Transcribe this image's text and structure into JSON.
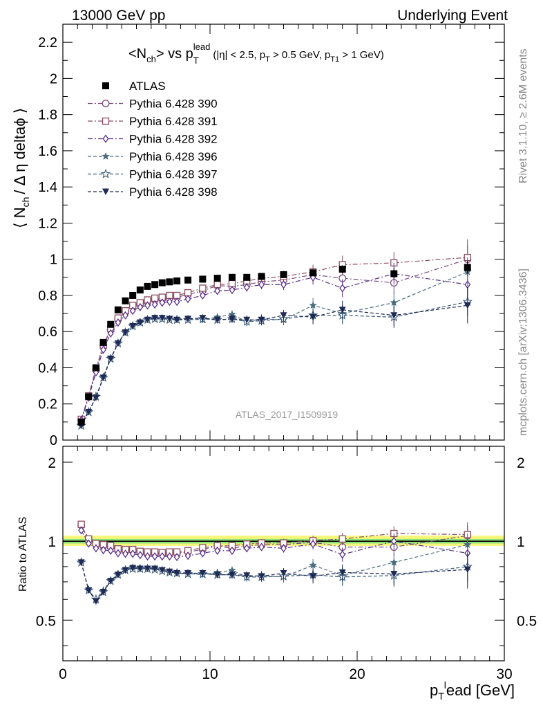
{
  "header": {
    "left": "13000 GeV pp",
    "right": "Underlying Event"
  },
  "side_labels": {
    "rivet": "Rivet 3.1.10, ≥ 2.6M events",
    "mcplots": "mcplots.cern.ch [arXiv:1306.3436]"
  },
  "watermark": "ATLAS_2017_I1509919",
  "title": {
    "main": "<N",
    "main_sub": "ch",
    "vs": "> vs p",
    "vs_sub": "T",
    "vs_sup": "lead",
    "cuts": "(|η| < 2.5, p",
    "cuts_sub1": "T",
    "cuts_mid": " > 0.5 GeV, p",
    "cuts_sub2": "T1",
    "cuts_end": " > 1 GeV)"
  },
  "ylabel_top": {
    "a": "⟨ N",
    "sub": "ch",
    "b": "/ Δ η deltaϕ ⟩"
  },
  "ylabel_bottom": "Ratio to ATLAS",
  "xlabel": {
    "p": "p",
    "sub": "T",
    "sup": "l",
    "rest": "ead [GeV]"
  },
  "chart_data": [
    {
      "type": "scatter",
      "panel": "main",
      "xlim": [
        0,
        30
      ],
      "ylim": [
        0,
        2.3
      ],
      "x_ticks": [
        0,
        10,
        20,
        30
      ],
      "y_ticks": [
        0,
        0.2,
        0.4,
        0.6,
        0.8,
        1,
        1.2,
        1.4,
        1.6,
        1.8,
        2,
        2.2
      ],
      "y_tick_labels": [
        "0",
        "0.2",
        "0.4",
        "0.6",
        "0.8",
        "1",
        "1.2",
        "1.4",
        "1.6",
        "1.8",
        "2",
        "2.2"
      ],
      "legend_placement": "top-left",
      "x": [
        1.25,
        1.75,
        2.25,
        2.75,
        3.25,
        3.75,
        4.25,
        4.75,
        5.25,
        5.75,
        6.25,
        6.75,
        7.25,
        7.75,
        8.5,
        9.5,
        10.5,
        11.5,
        12.5,
        13.5,
        15,
        17,
        19,
        22.5,
        27.5
      ],
      "series": [
        {
          "name": "ATLAS",
          "color": "#000000",
          "marker": "filled-square",
          "line": "none",
          "values": [
            0.1,
            0.24,
            0.4,
            0.54,
            0.64,
            0.72,
            0.77,
            0.8,
            0.83,
            0.85,
            0.86,
            0.87,
            0.875,
            0.88,
            0.885,
            0.89,
            0.895,
            0.9,
            0.9,
            0.905,
            0.915,
            0.925,
            0.945,
            0.92,
            0.955
          ],
          "errors": [
            0.005,
            0.005,
            0.005,
            0.005,
            0.005,
            0.005,
            0.005,
            0.005,
            0.005,
            0.005,
            0.005,
            0.005,
            0.006,
            0.006,
            0.007,
            0.008,
            0.009,
            0.01,
            0.01,
            0.012,
            0.014,
            0.018,
            0.022,
            0.028,
            0.035
          ]
        },
        {
          "name": "Pythia 6.428 390",
          "color": "#7a4a7e",
          "marker": "open-circle",
          "line": "dash-dot",
          "values": [
            0.11,
            0.24,
            0.39,
            0.52,
            0.61,
            0.67,
            0.71,
            0.74,
            0.755,
            0.765,
            0.775,
            0.78,
            0.785,
            0.79,
            0.805,
            0.825,
            0.855,
            0.85,
            0.86,
            0.875,
            0.885,
            0.915,
            0.895,
            0.87,
            1.0
          ],
          "errors": [
            0.005,
            0.005,
            0.006,
            0.007,
            0.008,
            0.009,
            0.01,
            0.01,
            0.01,
            0.012,
            0.012,
            0.013,
            0.014,
            0.015,
            0.016,
            0.018,
            0.02,
            0.022,
            0.024,
            0.026,
            0.03,
            0.04,
            0.05,
            0.06,
            0.08
          ]
        },
        {
          "name": "Pythia 6.428 391",
          "color": "#8b4a5e",
          "marker": "open-square",
          "line": "dash-dot",
          "values": [
            0.115,
            0.245,
            0.395,
            0.525,
            0.615,
            0.675,
            0.715,
            0.745,
            0.76,
            0.775,
            0.785,
            0.79,
            0.8,
            0.8,
            0.815,
            0.84,
            0.86,
            0.865,
            0.88,
            0.895,
            0.905,
            0.93,
            0.97,
            0.98,
            1.01
          ],
          "errors": [
            0.005,
            0.005,
            0.006,
            0.007,
            0.008,
            0.009,
            0.01,
            0.01,
            0.01,
            0.012,
            0.012,
            0.013,
            0.014,
            0.015,
            0.016,
            0.018,
            0.02,
            0.022,
            0.024,
            0.026,
            0.03,
            0.04,
            0.05,
            0.06,
            0.1
          ]
        },
        {
          "name": "Pythia 6.428 392",
          "color": "#5a2f8a",
          "marker": "open-diamond",
          "line": "dash-dot",
          "values": [
            0.11,
            0.235,
            0.375,
            0.5,
            0.59,
            0.65,
            0.69,
            0.715,
            0.735,
            0.745,
            0.75,
            0.76,
            0.765,
            0.765,
            0.78,
            0.8,
            0.825,
            0.83,
            0.845,
            0.86,
            0.86,
            0.9,
            0.84,
            0.92,
            0.86
          ],
          "errors": [
            0.005,
            0.005,
            0.006,
            0.007,
            0.008,
            0.009,
            0.01,
            0.01,
            0.01,
            0.012,
            0.012,
            0.013,
            0.014,
            0.015,
            0.016,
            0.018,
            0.02,
            0.022,
            0.024,
            0.026,
            0.03,
            0.04,
            0.05,
            0.06,
            0.08
          ]
        },
        {
          "name": "Pythia 6.428 396",
          "color": "#4a6e80",
          "marker": "filled-star",
          "line": "dashed",
          "values": [
            0.085,
            0.155,
            0.24,
            0.35,
            0.455,
            0.535,
            0.6,
            0.635,
            0.655,
            0.665,
            0.675,
            0.67,
            0.67,
            0.665,
            0.67,
            0.665,
            0.68,
            0.695,
            0.655,
            0.67,
            0.665,
            0.745,
            0.7,
            0.76,
            0.93
          ],
          "errors": [
            0.005,
            0.005,
            0.006,
            0.007,
            0.008,
            0.009,
            0.01,
            0.01,
            0.01,
            0.012,
            0.012,
            0.013,
            0.014,
            0.015,
            0.016,
            0.018,
            0.02,
            0.022,
            0.024,
            0.026,
            0.03,
            0.04,
            0.05,
            0.06,
            0.08
          ]
        },
        {
          "name": "Pythia 6.428 397",
          "color": "#3a5a7a",
          "marker": "open-star",
          "line": "dashed",
          "values": [
            0.08,
            0.155,
            0.24,
            0.345,
            0.45,
            0.535,
            0.595,
            0.63,
            0.65,
            0.665,
            0.67,
            0.67,
            0.665,
            0.665,
            0.665,
            0.67,
            0.665,
            0.67,
            0.655,
            0.66,
            0.67,
            0.69,
            0.69,
            0.68,
            0.765
          ],
          "errors": [
            0.005,
            0.005,
            0.006,
            0.007,
            0.008,
            0.009,
            0.01,
            0.01,
            0.01,
            0.012,
            0.012,
            0.013,
            0.014,
            0.015,
            0.016,
            0.018,
            0.02,
            0.022,
            0.024,
            0.026,
            0.03,
            0.04,
            0.05,
            0.06,
            0.08
          ]
        },
        {
          "name": "Pythia 6.428 398",
          "color": "#1f2a55",
          "marker": "filled-triangle-down",
          "line": "dashed",
          "values": [
            0.08,
            0.155,
            0.235,
            0.345,
            0.45,
            0.535,
            0.595,
            0.63,
            0.65,
            0.665,
            0.675,
            0.675,
            0.67,
            0.665,
            0.67,
            0.675,
            0.665,
            0.67,
            0.665,
            0.665,
            0.69,
            0.68,
            0.72,
            0.69,
            0.745
          ],
          "errors": [
            0.005,
            0.005,
            0.006,
            0.007,
            0.008,
            0.009,
            0.01,
            0.01,
            0.01,
            0.012,
            0.012,
            0.013,
            0.014,
            0.015,
            0.016,
            0.018,
            0.02,
            0.022,
            0.024,
            0.026,
            0.03,
            0.04,
            0.05,
            0.06,
            0.1
          ]
        }
      ]
    },
    {
      "type": "scatter",
      "panel": "ratio",
      "xlim": [
        0,
        30
      ],
      "ylim": [
        0.35,
        2.3
      ],
      "y_scale": "log",
      "x_ticks": [
        0,
        10,
        20,
        30
      ],
      "x_tick_labels": [
        "0",
        "10",
        "20",
        "30"
      ],
      "y_ticks": [
        0.5,
        1,
        2
      ],
      "y_tick_labels": [
        "0.5",
        "1",
        "2"
      ],
      "reference_band": {
        "color_inner": "#8fe07a",
        "color_outer": "#f6f67a",
        "inner": [
          0.98,
          1.02
        ],
        "outer": [
          0.96,
          1.05
        ]
      },
      "x": [
        1.25,
        1.75,
        2.25,
        2.75,
        3.25,
        3.75,
        4.25,
        4.75,
        5.25,
        5.75,
        6.25,
        6.75,
        7.25,
        7.75,
        8.5,
        9.5,
        10.5,
        11.5,
        12.5,
        13.5,
        15,
        17,
        19,
        22.5,
        27.5
      ],
      "series": [
        {
          "name": "Pythia 6.428 390",
          "color": "#7a4a7e",
          "marker": "open-circle",
          "line": "dash-dot",
          "values": [
            1.15,
            1.01,
            0.97,
            0.96,
            0.955,
            0.93,
            0.92,
            0.925,
            0.91,
            0.9,
            0.9,
            0.9,
            0.9,
            0.9,
            0.91,
            0.93,
            0.96,
            0.94,
            0.96,
            0.97,
            0.97,
            0.99,
            0.95,
            0.95,
            1.05
          ],
          "errors": [
            0.01,
            0.01,
            0.01,
            0.01,
            0.01,
            0.01,
            0.01,
            0.012,
            0.012,
            0.013,
            0.014,
            0.015,
            0.016,
            0.017,
            0.018,
            0.02,
            0.022,
            0.025,
            0.028,
            0.03,
            0.035,
            0.045,
            0.055,
            0.07,
            0.1
          ]
        },
        {
          "name": "Pythia 6.428 391",
          "color": "#8b4a5e",
          "marker": "open-square",
          "line": "dash-dot",
          "values": [
            1.16,
            1.02,
            0.98,
            0.97,
            0.96,
            0.935,
            0.93,
            0.93,
            0.915,
            0.91,
            0.91,
            0.905,
            0.91,
            0.91,
            0.92,
            0.945,
            0.96,
            0.96,
            0.975,
            0.985,
            0.985,
            1.005,
            1.02,
            1.07,
            1.06
          ],
          "errors": [
            0.01,
            0.01,
            0.01,
            0.01,
            0.01,
            0.01,
            0.01,
            0.012,
            0.012,
            0.013,
            0.014,
            0.015,
            0.016,
            0.017,
            0.018,
            0.02,
            0.022,
            0.025,
            0.028,
            0.03,
            0.035,
            0.045,
            0.055,
            0.07,
            0.12
          ]
        },
        {
          "name": "Pythia 6.428 392",
          "color": "#5a2f8a",
          "marker": "open-diamond",
          "line": "dash-dot",
          "values": [
            1.1,
            0.98,
            0.94,
            0.925,
            0.92,
            0.9,
            0.895,
            0.895,
            0.885,
            0.875,
            0.875,
            0.875,
            0.875,
            0.87,
            0.88,
            0.9,
            0.92,
            0.92,
            0.94,
            0.95,
            0.94,
            0.975,
            0.89,
            1.0,
            0.9
          ],
          "errors": [
            0.01,
            0.01,
            0.01,
            0.01,
            0.01,
            0.01,
            0.01,
            0.012,
            0.012,
            0.013,
            0.014,
            0.015,
            0.016,
            0.017,
            0.018,
            0.02,
            0.022,
            0.025,
            0.028,
            0.03,
            0.035,
            0.045,
            0.055,
            0.07,
            0.1
          ]
        },
        {
          "name": "Pythia 6.428 396",
          "color": "#4a6e80",
          "marker": "filled-star",
          "line": "dashed",
          "values": [
            0.83,
            0.65,
            0.6,
            0.65,
            0.71,
            0.75,
            0.78,
            0.795,
            0.79,
            0.785,
            0.785,
            0.77,
            0.765,
            0.755,
            0.755,
            0.745,
            0.76,
            0.775,
            0.73,
            0.74,
            0.73,
            0.81,
            0.74,
            0.83,
            0.97
          ],
          "errors": [
            0.01,
            0.01,
            0.01,
            0.01,
            0.01,
            0.01,
            0.01,
            0.012,
            0.012,
            0.013,
            0.014,
            0.015,
            0.016,
            0.017,
            0.018,
            0.02,
            0.022,
            0.025,
            0.028,
            0.03,
            0.035,
            0.045,
            0.055,
            0.07,
            0.1
          ]
        },
        {
          "name": "Pythia 6.428 397",
          "color": "#3a5a7a",
          "marker": "open-star",
          "line": "dashed",
          "values": [
            0.83,
            0.65,
            0.6,
            0.64,
            0.705,
            0.745,
            0.775,
            0.785,
            0.785,
            0.785,
            0.78,
            0.77,
            0.76,
            0.755,
            0.75,
            0.75,
            0.745,
            0.745,
            0.73,
            0.73,
            0.735,
            0.745,
            0.73,
            0.74,
            0.8
          ],
          "errors": [
            0.01,
            0.01,
            0.01,
            0.01,
            0.01,
            0.01,
            0.01,
            0.012,
            0.012,
            0.013,
            0.014,
            0.015,
            0.016,
            0.017,
            0.018,
            0.02,
            0.022,
            0.025,
            0.028,
            0.03,
            0.035,
            0.045,
            0.055,
            0.07,
            0.1
          ]
        },
        {
          "name": "Pythia 6.428 398",
          "color": "#1f2a55",
          "marker": "filled-triangle-down",
          "line": "dashed",
          "values": [
            0.83,
            0.65,
            0.59,
            0.64,
            0.705,
            0.745,
            0.775,
            0.79,
            0.785,
            0.785,
            0.785,
            0.775,
            0.765,
            0.755,
            0.755,
            0.755,
            0.745,
            0.745,
            0.74,
            0.735,
            0.755,
            0.735,
            0.76,
            0.75,
            0.78
          ],
          "errors": [
            0.01,
            0.01,
            0.01,
            0.01,
            0.01,
            0.01,
            0.01,
            0.012,
            0.012,
            0.013,
            0.014,
            0.015,
            0.016,
            0.017,
            0.018,
            0.02,
            0.022,
            0.025,
            0.028,
            0.03,
            0.035,
            0.045,
            0.055,
            0.07,
            0.12
          ]
        }
      ]
    }
  ]
}
